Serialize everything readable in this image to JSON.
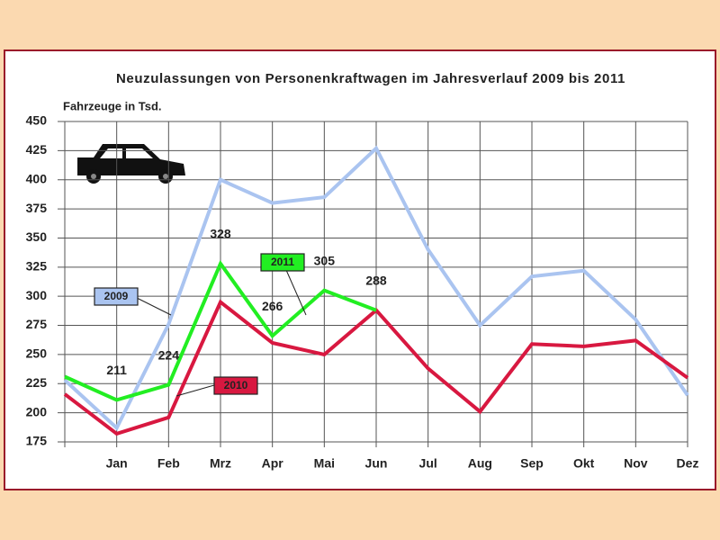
{
  "chart_data": {
    "type": "line",
    "title": "Neuzulassungen von Personenkraftwagen im Jahresverlauf 2009 bis 2011",
    "y_label": "Fahrzeuge in Tsd.",
    "categories": [
      null,
      "Jan",
      "Feb",
      "Mrz",
      "Apr",
      "Mai",
      "Jun",
      "Jul",
      "Aug",
      "Sep",
      "Okt",
      "Nov",
      "Dez"
    ],
    "series": [
      {
        "name": "2009",
        "color": "#aac4f0",
        "values": [
          228,
          187,
          276,
          400,
          380,
          385,
          427,
          340,
          275,
          317,
          322,
          280,
          215
        ]
      },
      {
        "name": "2010",
        "color": "#d81840",
        "values": [
          216,
          182,
          196,
          295,
          260,
          250,
          288,
          238,
          201,
          259,
          257,
          262,
          230
        ]
      },
      {
        "name": "2011",
        "color": "#22ee22",
        "values": [
          231,
          211,
          224,
          328,
          266,
          305,
          288,
          null,
          null,
          null,
          null,
          null,
          null
        ],
        "value_labels": [
          null,
          "211",
          "224",
          "328",
          "266",
          "305",
          "288",
          null,
          null,
          null,
          null,
          null,
          null
        ]
      }
    ],
    "ylim": [
      175,
      450
    ],
    "yticks": [
      175,
      200,
      225,
      250,
      275,
      300,
      325,
      350,
      375,
      400,
      425,
      450
    ],
    "grid": true
  }
}
